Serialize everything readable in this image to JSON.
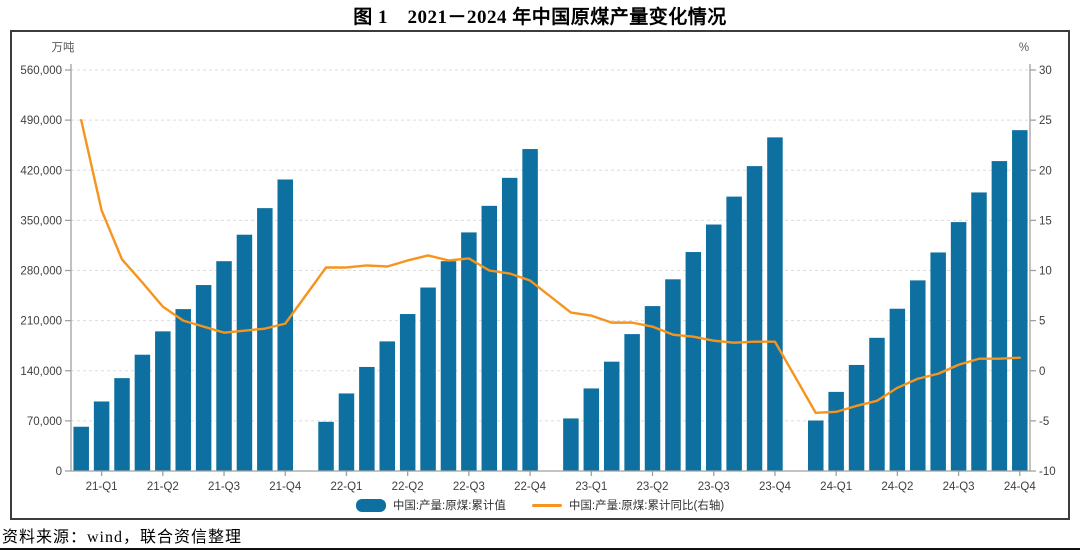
{
  "title": "图 1　2021－2024 年中国原煤产量变化情况",
  "source_note": "资料来源：wind，联合资信整理",
  "colors": {
    "bar": "#0e70a0",
    "line": "#f7941e",
    "grid": "#dcdcdc",
    "axis": "#a0a0a0",
    "tick_text": "#3f3f3f",
    "unit_text": "#595959"
  },
  "legend": [
    {
      "label": "中国:产量:原煤:累计值",
      "type": "bar"
    },
    {
      "label": "中国:产量:原煤:累计同比(右轴)",
      "type": "line"
    }
  ],
  "chart_data": {
    "type": "bar+line",
    "title": "图 1　2021－2024 年中国原煤产量变化情况",
    "left_axis": {
      "unit": "万吨",
      "min": 0,
      "max": 560000,
      "tick_step": 70000,
      "tick_labels": [
        "0",
        "70,000",
        "140,000",
        "210,000",
        "280,000",
        "350,000",
        "420,000",
        "490,000",
        "560,000"
      ]
    },
    "right_axis": {
      "unit": "%",
      "min": -10,
      "max": 30,
      "tick_step": 5,
      "tick_labels": [
        "-10",
        "-5",
        "0",
        "5",
        "10",
        "15",
        "20",
        "25",
        "30"
      ]
    },
    "x_tick_labels": [
      "21-Q1",
      "21-Q2",
      "21-Q3",
      "21-Q4",
      "22-Q1",
      "22-Q2",
      "22-Q3",
      "22-Q4",
      "23-Q1",
      "23-Q2",
      "23-Q3",
      "23-Q4",
      "24-Q1",
      "24-Q2",
      "24-Q3",
      "24-Q4"
    ],
    "grid": "dashed-horizontal",
    "legend_position": "bottom",
    "note": "monthly cumulative data, Feb-Dec each year (no January bar)",
    "months": [
      "2021-02",
      "2021-03",
      "2021-04",
      "2021-05",
      "2021-06",
      "2021-07",
      "2021-08",
      "2021-09",
      "2021-10",
      "2021-11",
      "2021-12",
      "2022-02",
      "2022-03",
      "2022-04",
      "2022-05",
      "2022-06",
      "2022-07",
      "2022-08",
      "2022-09",
      "2022-10",
      "2022-11",
      "2022-12",
      "2023-02",
      "2023-03",
      "2023-04",
      "2023-05",
      "2023-06",
      "2023-07",
      "2023-08",
      "2023-09",
      "2023-10",
      "2023-11",
      "2023-12",
      "2024-02",
      "2024-03",
      "2024-04",
      "2024-05",
      "2024-06",
      "2024-07",
      "2024-08",
      "2024-09",
      "2024-10",
      "2024-11",
      "2024-12"
    ],
    "series": [
      {
        "name": "中国:产量:原煤:累计值",
        "type": "bar",
        "axis": "left",
        "values": [
          61800,
          97100,
          129700,
          162400,
          195000,
          226100,
          259700,
          293000,
          330000,
          367100,
          407100,
          68700,
          108300,
          145300,
          181000,
          219200,
          256200,
          293000,
          333200,
          370300,
          409400,
          449600,
          73400,
          115300,
          152700,
          191200,
          230300,
          267700,
          305800,
          344200,
          383200,
          425800,
          465900,
          70500,
          110500,
          148100,
          186000,
          226600,
          266200,
          305200,
          347600,
          389000,
          432800,
          476000
        ]
      },
      {
        "name": "中国:产量:原煤:累计同比(右轴)",
        "type": "line",
        "axis": "right",
        "values": [
          25.0,
          16.0,
          11.1,
          8.8,
          6.4,
          5.0,
          4.4,
          3.8,
          4.0,
          4.2,
          4.7,
          10.3,
          10.3,
          10.5,
          10.4,
          11.0,
          11.5,
          11.0,
          11.2,
          10.0,
          9.7,
          9.0,
          5.8,
          5.5,
          4.8,
          4.8,
          4.4,
          3.6,
          3.4,
          3.0,
          2.8,
          2.9,
          2.9,
          -4.2,
          -4.1,
          -3.5,
          -3.0,
          -1.7,
          -0.8,
          -0.3,
          0.6,
          1.2,
          1.2,
          1.3
        ]
      }
    ]
  }
}
